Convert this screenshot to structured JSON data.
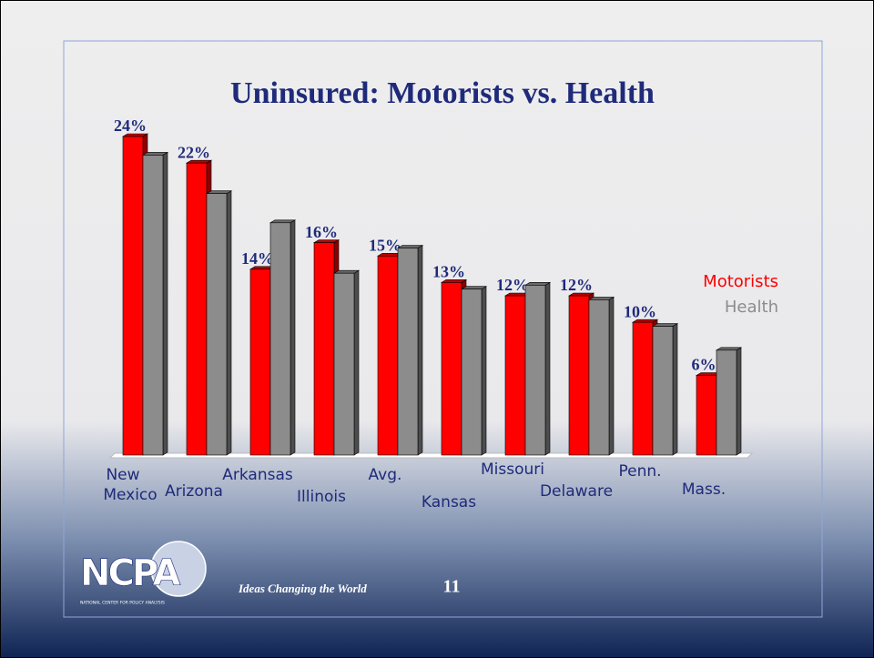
{
  "chart_data": {
    "type": "bar3d",
    "title": "Uninsured: Motorists vs. Health",
    "categories": [
      "New Mexico",
      "Arizona",
      "Arkansas",
      "Illinois",
      "Avg.",
      "Kansas",
      "Missouri",
      "Delaware",
      "Penn.",
      "Mass."
    ],
    "series": [
      {
        "name": "Motorists",
        "color": "#ff0000",
        "values": [
          24,
          22,
          14,
          16,
          15,
          13,
          12,
          12,
          10,
          6
        ],
        "value_labels": [
          "24%",
          "22%",
          "14%",
          "16%",
          "15%",
          "13%",
          "12%",
          "12%",
          "10%",
          "6%"
        ]
      },
      {
        "name": "Health",
        "color": "#8c8c8c",
        "values": [
          22.6,
          19.7,
          17.5,
          13.7,
          15.6,
          12.5,
          12.8,
          11.7,
          9.7,
          7.9
        ]
      }
    ],
    "ylim": [
      0,
      24
    ]
  },
  "footer": {
    "logo": "NCPA",
    "logo_caption": "NATIONAL CENTER FOR POLICY ANALYSIS",
    "tagline": "Ideas Changing the World",
    "page_number": "11"
  }
}
